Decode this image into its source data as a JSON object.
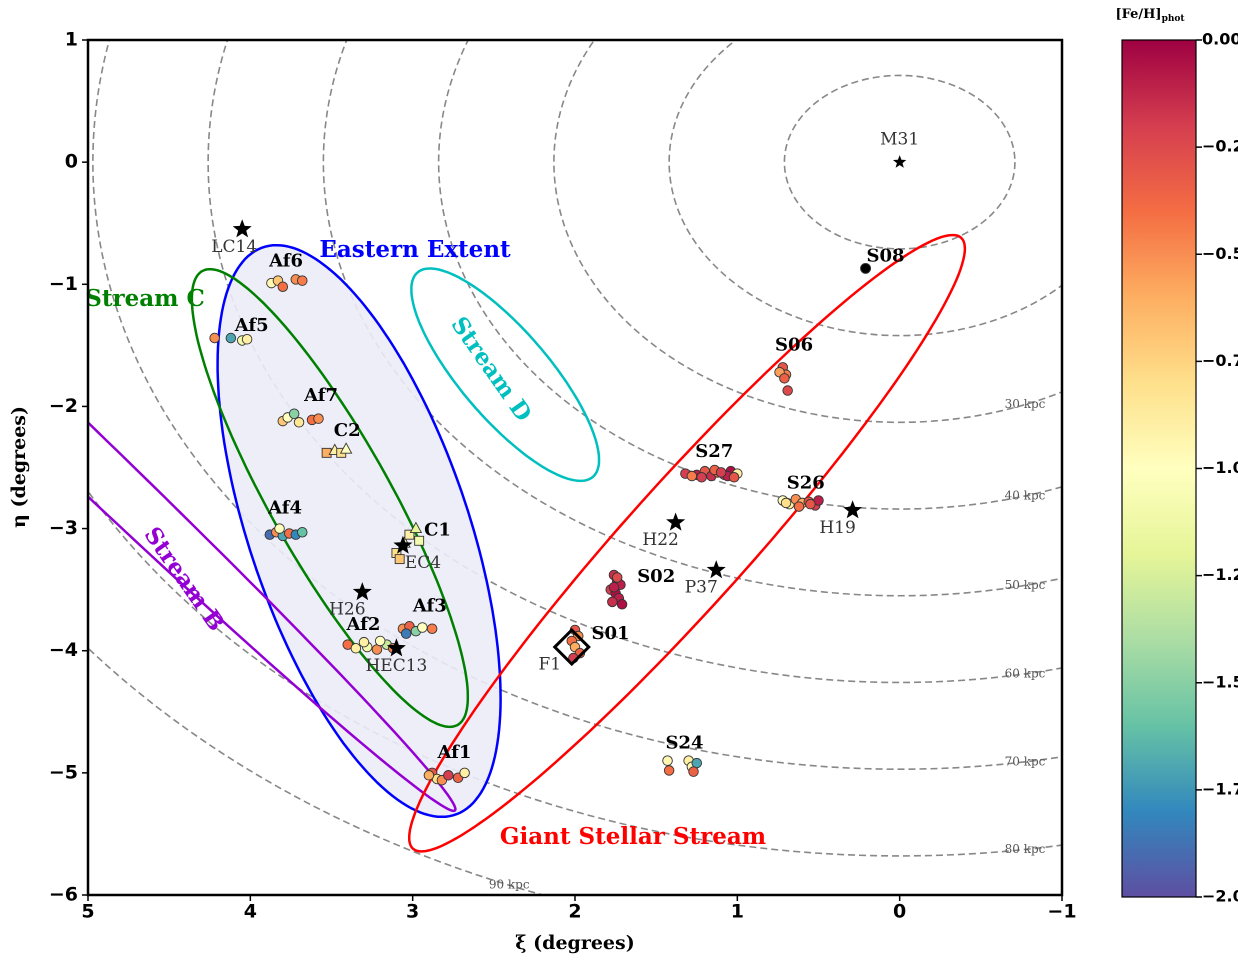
{
  "chart_data": {
    "type": "scatter",
    "xlabel": "ξ (degrees)",
    "ylabel": "η (degrees)",
    "xlim": [
      5,
      -1
    ],
    "xticks": [
      5,
      4,
      3,
      2,
      1,
      0,
      {
        "value": -1,
        "label": "−1"
      }
    ],
    "ylim": [
      -6,
      1
    ],
    "yticks": [
      1,
      0,
      {
        "value": -1,
        "label": "−1"
      },
      {
        "value": -2,
        "label": "−2"
      },
      {
        "value": -3,
        "label": "−3"
      },
      {
        "value": -4,
        "label": "−4"
      },
      {
        "value": -5,
        "label": "−5"
      },
      {
        "value": -6,
        "label": "−6"
      }
    ],
    "colorbar_label": "[Fe/H]",
    "colorbar_label_sub": "phot",
    "colormap": "Spectral_r",
    "clim": [
      -2,
      0
    ],
    "cticks": [
      {
        "value": 0,
        "label": "0.00"
      },
      {
        "value": -0.25,
        "label": "−0.25"
      },
      {
        "value": -0.5,
        "label": "−0.50"
      },
      {
        "value": -0.75,
        "label": "−0.75"
      },
      {
        "value": -1,
        "label": "−1.00"
      },
      {
        "value": -1.25,
        "label": "−1.25"
      },
      {
        "value": -1.5,
        "label": "−1.50"
      },
      {
        "value": -1.75,
        "label": "−1.75"
      },
      {
        "value": -2,
        "label": "−2.00"
      }
    ],
    "circles": [
      {
        "radius": 0.71
      },
      {
        "radius": 1.42
      },
      {
        "radius": 2.13,
        "label": "30 kpc"
      },
      {
        "radius": 2.84,
        "label": "40 kpc"
      },
      {
        "radius": 3.55,
        "label": "50 kpc"
      },
      {
        "radius": 4.26,
        "label": "60 kpc"
      },
      {
        "radius": 4.97,
        "label": "70 kpc"
      },
      {
        "radius": 5.68,
        "label": "80 kpc"
      },
      {
        "radius": 6.39,
        "label": "90 kpc"
      }
    ],
    "regions": [
      {
        "name": "Giant Stellar Stream",
        "color": "#ff0000",
        "center": [
          1.31,
          -3.12
        ],
        "axes": [
          3.02,
          0.42
        ],
        "angle": 123.7
      },
      {
        "name": "Eastern Extent",
        "color": "#0000ff",
        "fill": "#ececf8",
        "center": [
          3.33,
          -3.02
        ],
        "axes": [
          2.4,
          0.69
        ],
        "angle": 76.6
      },
      {
        "name": "Stream C",
        "color": "#008000",
        "center": [
          3.51,
          -2.75
        ],
        "axes": [
          2.02,
          0.39
        ],
        "angle": 67.6
      },
      {
        "name": "Stream D",
        "color": "#00bfbf",
        "center": [
          2.43,
          -1.74
        ],
        "axes": [
          1.0,
          0.3
        ],
        "angle": 58.8
      },
      {
        "name": "Stream B",
        "color": "#9400d3",
        "center": [
          5.4,
          -1.93
        ],
        "axes": [
          4.3,
          0.19
        ],
        "angle": 51.8
      }
    ],
    "objects": [
      {
        "name": "M31",
        "x": 0,
        "y": 0,
        "marker": "star"
      },
      {
        "name": "LC14",
        "x": 4.05,
        "y": -0.55,
        "marker": "star"
      },
      {
        "name": "H26",
        "x": 3.31,
        "y": -3.52,
        "marker": "star"
      },
      {
        "name": "HEC13",
        "x": 3.1,
        "y": -3.98,
        "marker": "star"
      },
      {
        "name": "EC4",
        "x": 3.06,
        "y": -3.14,
        "marker": "star"
      },
      {
        "name": "H22",
        "x": 1.38,
        "y": -2.95,
        "marker": "star"
      },
      {
        "name": "P37",
        "x": 1.13,
        "y": -3.34,
        "marker": "star"
      },
      {
        "name": "H19",
        "x": 0.29,
        "y": -2.85,
        "marker": "star"
      },
      {
        "name": "F1",
        "x": 2.02,
        "y": -3.97,
        "marker": "diamond"
      }
    ],
    "series": [
      {
        "name": "S08",
        "marker": "circle",
        "x": [
          0.21
        ],
        "y": [
          -0.87
        ],
        "c": [
          null
        ]
      },
      {
        "name": "S06",
        "marker": "circle",
        "x": [
          0.72,
          0.7,
          0.74,
          0.71,
          0.69
        ],
        "y": [
          -1.68,
          -1.74,
          -1.72,
          -1.77,
          -1.87
        ],
        "c": [
          -0.3,
          -0.45,
          -0.55,
          -0.35,
          -0.25
        ]
      },
      {
        "name": "S27",
        "marker": "circle",
        "x": [
          1.32,
          1.25,
          1.2,
          1.16,
          1.12,
          1.08,
          1.04,
          1.0,
          1.22,
          1.14,
          1.06,
          1.02,
          1.28,
          1.1
        ],
        "y": [
          -2.55,
          -2.56,
          -2.53,
          -2.57,
          -2.54,
          -2.56,
          -2.53,
          -2.55,
          -2.58,
          -2.52,
          -2.57,
          -2.58,
          -2.57,
          -2.54
        ],
        "c": [
          -0.2,
          -0.1,
          -0.3,
          -0.15,
          -0.4,
          -0.25,
          -0.05,
          -0.9,
          -0.2,
          -0.35,
          -0.1,
          -0.3,
          -0.45,
          -0.2
        ]
      },
      {
        "name": "S26",
        "marker": "circle",
        "x": [
          0.72,
          0.68,
          0.64,
          0.6,
          0.56,
          0.52,
          0.5,
          0.62,
          0.7,
          0.55
        ],
        "y": [
          -2.77,
          -2.8,
          -2.76,
          -2.79,
          -2.78,
          -2.81,
          -2.77,
          -2.82,
          -2.79,
          -2.8
        ],
        "c": [
          -1.0,
          -0.9,
          -0.5,
          -0.6,
          -0.3,
          -0.2,
          -0.1,
          -0.4,
          -0.8,
          -0.3
        ]
      },
      {
        "name": "S02",
        "marker": "circle",
        "x": [
          1.76,
          1.74,
          1.72,
          1.78,
          1.75,
          1.73,
          1.77,
          1.71,
          1.74,
          1.76
        ],
        "y": [
          -3.38,
          -3.43,
          -3.46,
          -3.5,
          -3.53,
          -3.57,
          -3.6,
          -3.62,
          -3.4,
          -3.48
        ],
        "c": [
          -0.15,
          -0.05,
          -0.1,
          -0.2,
          -0.05,
          -0.1,
          -0.15,
          -0.05,
          -0.25,
          -0.1
        ]
      },
      {
        "name": "S01",
        "marker": "circle",
        "x": [
          2.0,
          1.98,
          2.02,
          2.0,
          1.97,
          2.01
        ],
        "y": [
          -3.83,
          -3.88,
          -3.92,
          -3.97,
          -4.02,
          -4.06
        ],
        "c": [
          -0.3,
          -0.5,
          -0.4,
          -0.6,
          -0.35,
          -0.2
        ]
      },
      {
        "name": "S24",
        "marker": "circle",
        "x": [
          1.43,
          1.42,
          1.3,
          1.28,
          1.25,
          1.27
        ],
        "y": [
          -4.9,
          -4.98,
          -4.9,
          -4.95,
          -4.92,
          -4.99
        ],
        "c": [
          -0.95,
          -0.4,
          -0.9,
          -0.95,
          -1.7,
          -0.35
        ]
      },
      {
        "name": "Af1",
        "marker": "circle",
        "x": [
          2.88,
          2.85,
          2.82,
          2.78,
          2.72,
          2.68,
          2.9
        ],
        "y": [
          -5.0,
          -5.05,
          -5.06,
          -5.02,
          -5.04,
          -5.0,
          -5.02
        ],
        "c": [
          -0.3,
          -0.8,
          -0.5,
          -0.2,
          -0.35,
          -0.9,
          -0.6
        ]
      },
      {
        "name": "Af2",
        "marker": "circle",
        "x": [
          3.4,
          3.35,
          3.28,
          3.22,
          3.16,
          3.12,
          3.3,
          3.2
        ],
        "y": [
          -3.95,
          -3.98,
          -3.97,
          -3.99,
          -3.95,
          -3.98,
          -3.93,
          -3.92
        ],
        "c": [
          -0.4,
          -0.9,
          -1.1,
          -0.5,
          -1.3,
          -0.45,
          -0.9,
          -1.0
        ]
      },
      {
        "name": "Af3",
        "marker": "circle",
        "x": [
          3.06,
          3.02,
          2.98,
          2.94,
          2.88,
          3.04
        ],
        "y": [
          -3.82,
          -3.8,
          -3.84,
          -3.81,
          -3.82,
          -3.86
        ],
        "c": [
          -0.5,
          -0.35,
          -1.5,
          -1.0,
          -0.45,
          -1.85
        ]
      },
      {
        "name": "Af4",
        "marker": "circle",
        "x": [
          3.88,
          3.84,
          3.8,
          3.76,
          3.72,
          3.68,
          3.82
        ],
        "y": [
          -3.05,
          -3.03,
          -3.06,
          -3.04,
          -3.05,
          -3.03,
          -3.0
        ],
        "c": [
          -1.9,
          -0.5,
          -1.7,
          -0.4,
          -1.8,
          -1.6,
          -1.0
        ]
      },
      {
        "name": "Af5",
        "marker": "circle",
        "x": [
          4.22,
          4.12,
          4.05,
          4.02
        ],
        "y": [
          -1.44,
          -1.44,
          -1.46,
          -1.45
        ],
        "c": [
          -0.5,
          -1.7,
          -1.1,
          -0.9
        ]
      },
      {
        "name": "Af6",
        "marker": "circle",
        "x": [
          3.87,
          3.83,
          3.8,
          3.72,
          3.68
        ],
        "y": [
          -0.99,
          -0.97,
          -1.02,
          -0.96,
          -0.97
        ],
        "c": [
          -0.95,
          -0.7,
          -0.4,
          -0.5,
          -0.45
        ]
      },
      {
        "name": "Af7",
        "marker": "circle",
        "x": [
          3.8,
          3.77,
          3.73,
          3.62,
          3.58,
          3.7
        ],
        "y": [
          -2.12,
          -2.09,
          -2.06,
          -2.11,
          -2.1,
          -2.13
        ],
        "c": [
          -0.7,
          -1.0,
          -1.5,
          -0.4,
          -0.5,
          -0.85
        ]
      },
      {
        "name": "C2",
        "markers": [
          "square",
          "triangle",
          "square",
          "triangle"
        ],
        "x": [
          3.53,
          3.48,
          3.44,
          3.41
        ],
        "y": [
          -2.38,
          -2.36,
          -2.38,
          -2.35
        ],
        "c": [
          -0.6,
          -0.9,
          -0.8,
          -1.0
        ]
      },
      {
        "name": "C1",
        "markers": [
          "square",
          "triangle",
          "square",
          "triangle",
          "square",
          "square"
        ],
        "x": [
          3.1,
          3.05,
          3.02,
          2.98,
          2.96,
          3.08
        ],
        "y": [
          -3.2,
          -3.12,
          -3.05,
          -3.0,
          -3.1,
          -3.25
        ],
        "c": [
          -0.8,
          -1.0,
          -0.9,
          -1.2,
          -1.1,
          -0.7
        ]
      }
    ]
  }
}
